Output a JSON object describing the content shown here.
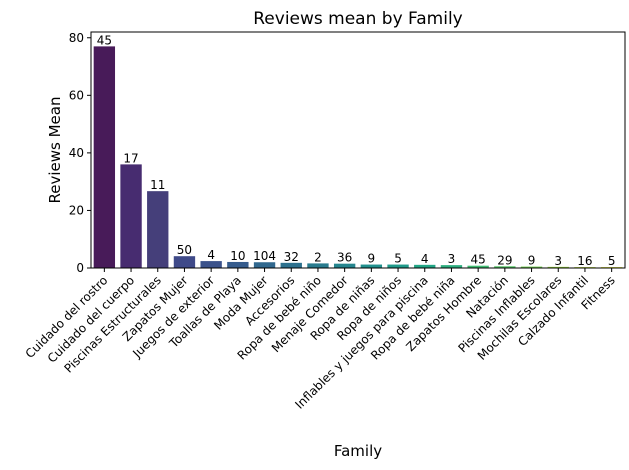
{
  "chart_data": {
    "type": "bar",
    "title": "Reviews mean by Family",
    "xlabel": "Family",
    "ylabel": "Reviews Mean",
    "ylim": [
      0,
      82
    ],
    "yticks": [
      0,
      20,
      40,
      60,
      80
    ],
    "grid": false,
    "palette": "viridis",
    "categories": [
      "Cuidado del rostro",
      "Cuidado del cuerpo",
      "Piscinas Estructurales",
      "Zapatos Mujer",
      "Juegos de exterior",
      "Toallas de Playa",
      "Moda Mujer",
      "Accesorios",
      "Ropa de bebé niño",
      "Menaje Comedor",
      "Ropa de niñas",
      "Ropa de niños",
      "Inflables y juegos para piscina",
      "Ropa de bebé niña",
      "Zapatos Hombre",
      "Natación",
      "Piscinas Inflables",
      "Mochilas Escolares",
      "Calzado Infantil",
      "Fitness"
    ],
    "values": [
      77,
      36,
      26.7,
      4.1,
      2.4,
      2.1,
      2.0,
      1.8,
      1.6,
      1.5,
      1.2,
      1.2,
      1.1,
      1.0,
      0.8,
      0.6,
      0.5,
      0.4,
      0.3,
      0.3
    ],
    "bar_labels": [
      "45",
      "17",
      "11",
      "50",
      "4",
      "10",
      "104",
      "32",
      "2",
      "36",
      "9",
      "5",
      "4",
      "3",
      "45",
      "29",
      "9",
      "3",
      "16",
      "5"
    ],
    "colors": [
      "#481b59",
      "#472c70",
      "#453f7a",
      "#3f4a89",
      "#3b528b",
      "#365c8d",
      "#31688e",
      "#2d718e",
      "#297b8e",
      "#25858e",
      "#21908d",
      "#1f9a8a",
      "#21a585",
      "#2dae7f",
      "#40bd72",
      "#56c667",
      "#75d054",
      "#97d83e",
      "#bade28",
      "#e0e51c"
    ]
  }
}
